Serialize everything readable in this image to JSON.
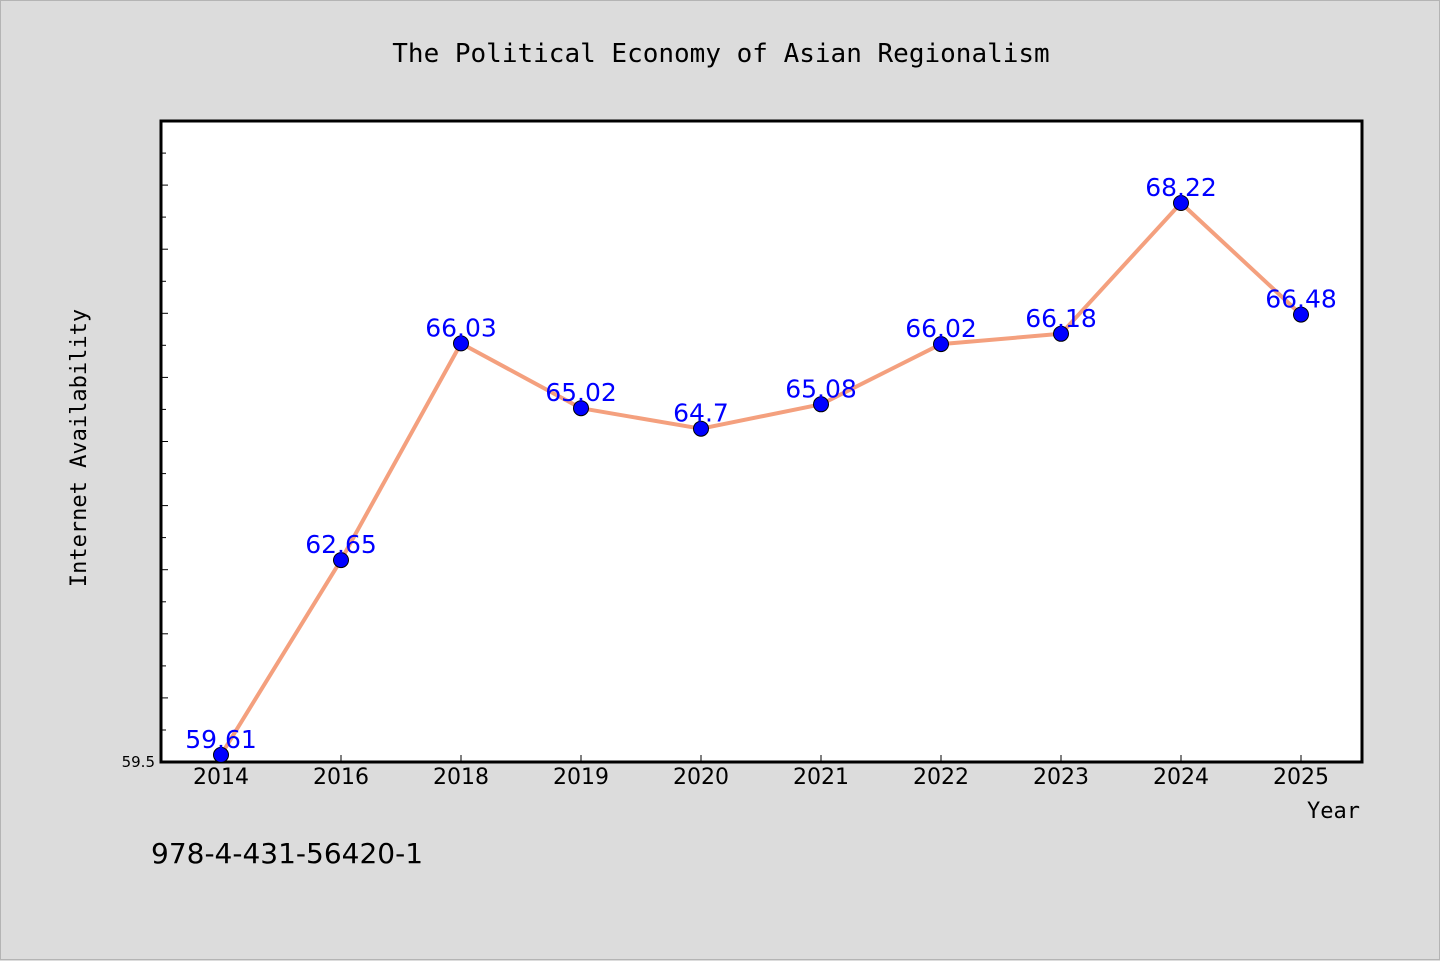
{
  "chart_data": {
    "type": "line",
    "title": "The Political Economy of Asian Regionalism",
    "xlabel": "Year",
    "ylabel": "Internet Availability",
    "categories": [
      "2014",
      "2016",
      "2018",
      "2019",
      "2020",
      "2021",
      "2022",
      "2023",
      "2024",
      "2025"
    ],
    "series": [
      {
        "values": [
          59.61,
          62.65,
          66.03,
          65.02,
          64.7,
          65.08,
          66.02,
          66.18,
          68.22,
          66.48
        ],
        "data_labels": [
          "59.61",
          "62.65",
          "66.03",
          "65.02",
          "64.7",
          "65.08",
          "66.02",
          "66.18",
          "68.22",
          "66.48"
        ],
        "line_color": "#f4a07e",
        "marker_color": "#0000ff",
        "label_color": "#0000ff"
      }
    ],
    "ylim": [
      59.5,
      69.5
    ],
    "ytick_labels": [
      "59.5"
    ],
    "grid": false,
    "legend": "none",
    "background": "#dcdcdc",
    "plot_background": "#ffffff"
  },
  "footer": {
    "isbn": "978-4-431-56420-1"
  }
}
